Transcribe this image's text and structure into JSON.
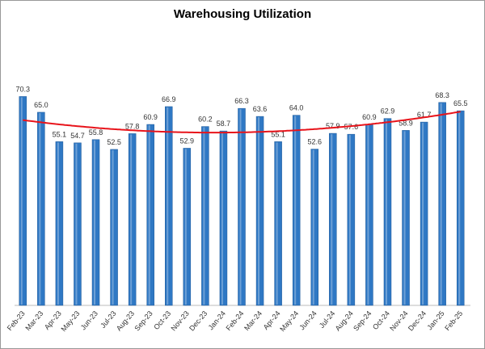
{
  "chart_data": {
    "type": "bar",
    "title": "Warehousing  Utilization",
    "categories": [
      "Feb-23",
      "Mar-23",
      "Apr-23",
      "May-23",
      "Jun-23",
      "Jul-23",
      "Aug-23",
      "Sep-23",
      "Oct-23",
      "Nov-23",
      "Dec-23",
      "Jan-24",
      "Feb-24",
      "Mar-24",
      "Apr-24",
      "May-24",
      "Jun-24",
      "Jul-24",
      "Aug-24",
      "Sep-24",
      "Oct-24",
      "Nov-24",
      "Dec-24",
      "Jan-25",
      "Feb-25"
    ],
    "values": [
      70.3,
      65,
      55.1,
      54.7,
      55.8,
      52.5,
      57.8,
      60.9,
      66.9,
      52.9,
      60.2,
      58.7,
      66.3,
      63.6,
      55.1,
      64,
      52.6,
      57.9,
      57.6,
      60.9,
      62.9,
      58.9,
      61.7,
      68.3,
      65.5
    ],
    "value_labels": [
      "70.3",
      "65.0",
      "55.1",
      "54.7",
      "55.8",
      "52.5",
      "57.8",
      "60.9",
      "66.9",
      "52.9",
      "60.2",
      "58.7",
      "66.3",
      "63.6",
      "55.1",
      "64.0",
      "52.6",
      "57.9",
      "57.6",
      "60.9",
      "62.9",
      "58.9",
      "61.7",
      "68.3",
      "65.5"
    ],
    "color": "#2f78c4",
    "ylim": [
      0,
      90
    ],
    "trendline": {
      "type": "polynomial",
      "color": "#e8141b"
    }
  }
}
